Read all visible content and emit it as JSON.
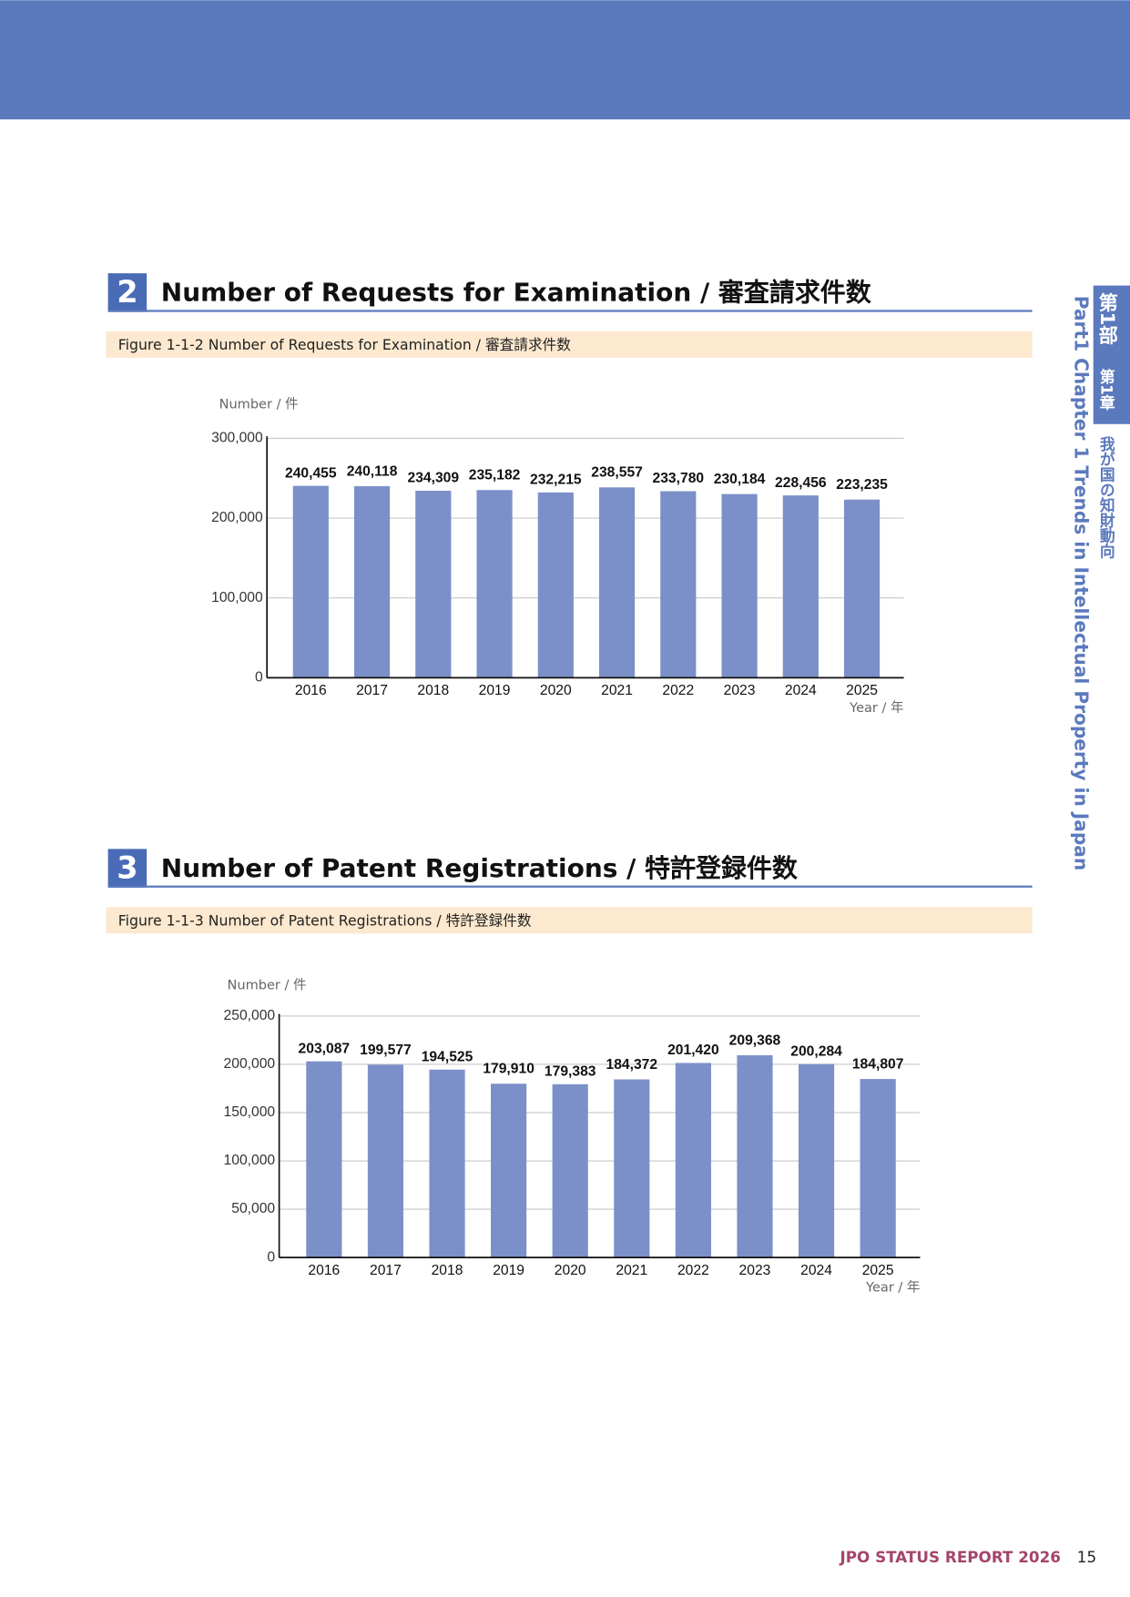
{
  "side_tab": {
    "part": "第1部",
    "chapter": "第1章",
    "chapter_title": "我が国の知財動向",
    "english": "Part1  Chapter 1  Trends in Intellectual Property in Japan"
  },
  "sections": [
    {
      "number": "2",
      "heading": "Number of Requests for Examination / 審査請求件数",
      "figure": "Figure 1-1-2  Number of Requests for Examination / 審査請求件数"
    },
    {
      "number": "3",
      "heading": "Number of Patent Registrations / 特許登録件数",
      "figure": "Figure 1-1-3  Number of Patent Registrations / 特許登録件数"
    }
  ],
  "chart_data": [
    {
      "type": "bar",
      "y_label": "Number / 件",
      "x_label": "Year / 年",
      "color": "#7b90c8",
      "grid": true,
      "categories": [
        "2016",
        "2017",
        "2018",
        "2019",
        "2020",
        "2021",
        "2022",
        "2023",
        "2024",
        "2025"
      ],
      "values": [
        240455,
        240118,
        234309,
        235182,
        232215,
        238557,
        233780,
        230184,
        228456,
        223235
      ],
      "value_labels": [
        "240,455",
        "240,118",
        "234,309",
        "235,182",
        "232,215",
        "238,557",
        "233,780",
        "230,184",
        "228,456",
        "223,235"
      ],
      "ylim": [
        0,
        300000
      ],
      "yticks": [
        0,
        {
          "value": 100000,
          "label": "100,000"
        },
        {
          "value": 200000,
          "label": "200,000"
        },
        {
          "value": 300000,
          "label": "300,000"
        }
      ]
    },
    {
      "type": "bar",
      "y_label": "Number / 件",
      "x_label": "Year / 年",
      "color": "#7b90c8",
      "grid": true,
      "categories": [
        "2016",
        "2017",
        "2018",
        "2019",
        "2020",
        "2021",
        "2022",
        "2023",
        "2024",
        "2025"
      ],
      "values": [
        203087,
        199577,
        194525,
        179910,
        179383,
        184372,
        201420,
        209368,
        200284,
        184807
      ],
      "value_labels": [
        "203,087",
        "199,577",
        "194,525",
        "179,910",
        "179,383",
        "184,372",
        "201,420",
        "209,368",
        "200,284",
        "184,807"
      ],
      "ylim": [
        0,
        250000
      ],
      "yticks": [
        0,
        {
          "value": 50000,
          "label": "50,000"
        },
        {
          "value": 100000,
          "label": "100,000"
        },
        {
          "value": 150000,
          "label": "150,000"
        },
        {
          "value": 200000,
          "label": "200,000"
        },
        {
          "value": 250000,
          "label": "250,000"
        }
      ]
    }
  ],
  "footer": {
    "report": "JPO STATUS REPORT 2026",
    "page": "15"
  }
}
